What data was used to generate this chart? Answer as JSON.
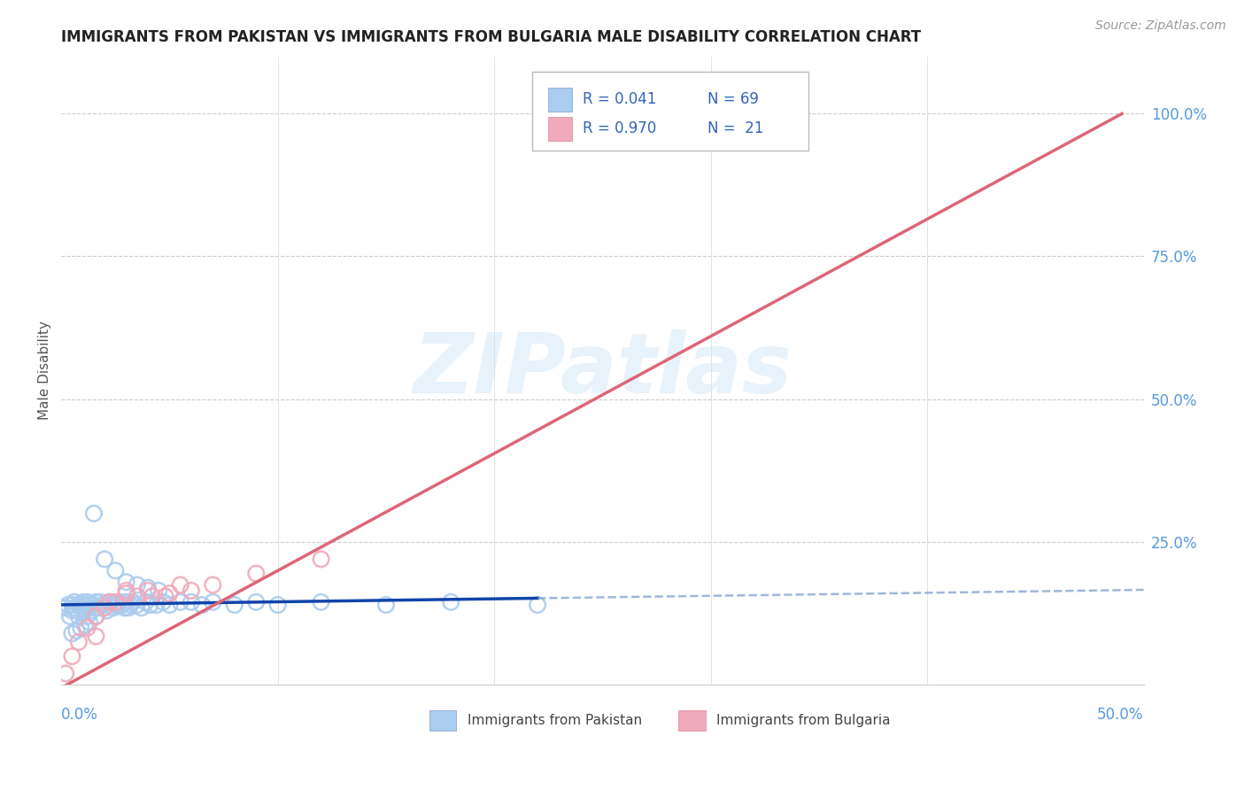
{
  "title": "IMMIGRANTS FROM PAKISTAN VS IMMIGRANTS FROM BULGARIA MALE DISABILITY CORRELATION CHART",
  "source": "Source: ZipAtlas.com",
  "ylabel": "Male Disability",
  "ytick_vals": [
    0.25,
    0.5,
    0.75,
    1.0
  ],
  "ytick_labels": [
    "25.0%",
    "50.0%",
    "75.0%",
    "100.0%"
  ],
  "xlim": [
    0.0,
    0.5
  ],
  "ylim": [
    0.0,
    1.1
  ],
  "pakistan_color": "#aaccee",
  "bulgaria_color": "#f0aabb",
  "pakistan_line_color": "#1144aa",
  "pakistan_dash_color": "#7799cc",
  "bulgaria_line_color": "#dd6677",
  "watermark_text": "ZIPatlas",
  "pakistan_x": [
    0.002,
    0.003,
    0.004,
    0.005,
    0.005,
    0.006,
    0.006,
    0.007,
    0.008,
    0.008,
    0.009,
    0.01,
    0.01,
    0.011,
    0.012,
    0.012,
    0.013,
    0.014,
    0.015,
    0.015,
    0.016,
    0.017,
    0.018,
    0.019,
    0.02,
    0.021,
    0.022,
    0.023,
    0.024,
    0.025,
    0.026,
    0.027,
    0.028,
    0.029,
    0.03,
    0.031,
    0.032,
    0.033,
    0.035,
    0.037,
    0.039,
    0.041,
    0.044,
    0.047,
    0.05,
    0.055,
    0.06,
    0.065,
    0.07,
    0.08,
    0.09,
    0.1,
    0.12,
    0.15,
    0.18,
    0.22,
    0.015,
    0.02,
    0.025,
    0.03,
    0.035,
    0.04,
    0.045,
    0.005,
    0.007,
    0.009,
    0.011,
    0.013,
    0.016
  ],
  "pakistan_y": [
    0.135,
    0.14,
    0.12,
    0.13,
    0.14,
    0.145,
    0.135,
    0.13,
    0.12,
    0.14,
    0.135,
    0.145,
    0.14,
    0.13,
    0.12,
    0.145,
    0.14,
    0.13,
    0.135,
    0.14,
    0.145,
    0.135,
    0.145,
    0.14,
    0.135,
    0.13,
    0.14,
    0.145,
    0.135,
    0.14,
    0.14,
    0.145,
    0.14,
    0.135,
    0.145,
    0.135,
    0.14,
    0.145,
    0.14,
    0.135,
    0.145,
    0.14,
    0.14,
    0.145,
    0.14,
    0.145,
    0.145,
    0.14,
    0.145,
    0.14,
    0.145,
    0.14,
    0.145,
    0.14,
    0.145,
    0.14,
    0.3,
    0.22,
    0.2,
    0.18,
    0.175,
    0.17,
    0.165,
    0.09,
    0.095,
    0.1,
    0.105,
    0.11,
    0.12
  ],
  "bulgaria_x": [
    0.002,
    0.005,
    0.008,
    0.012,
    0.016,
    0.02,
    0.025,
    0.03,
    0.035,
    0.042,
    0.05,
    0.06,
    0.07,
    0.09,
    0.12,
    0.016,
    0.022,
    0.03,
    0.04,
    0.055,
    0.048
  ],
  "bulgaria_y": [
    0.02,
    0.05,
    0.075,
    0.1,
    0.12,
    0.135,
    0.145,
    0.165,
    0.155,
    0.155,
    0.16,
    0.165,
    0.175,
    0.195,
    0.22,
    0.085,
    0.145,
    0.16,
    0.165,
    0.175,
    0.155
  ],
  "pak_line_xmin": 0.0,
  "pak_line_xsolid_end": 0.22,
  "pak_line_xdash_end": 0.5,
  "bul_line_xmin": 0.0,
  "bul_line_xmax": 0.49
}
